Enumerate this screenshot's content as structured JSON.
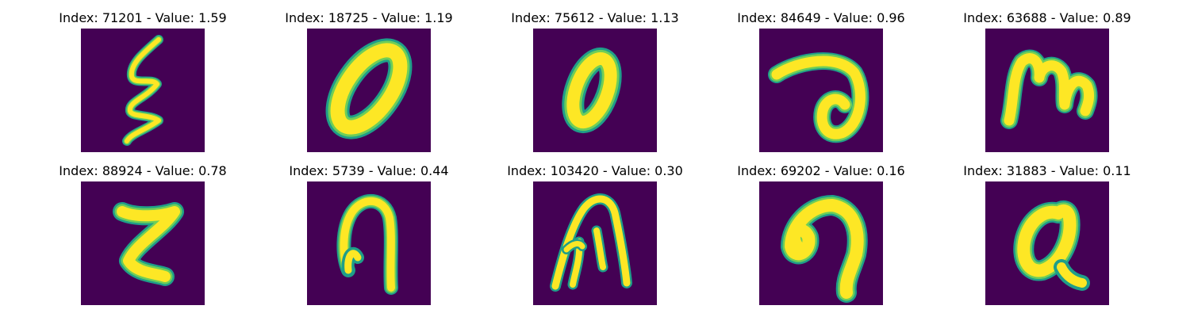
{
  "colors": {
    "background": "#440154",
    "glyph_core": "#fde725",
    "glyph_edge_mid": "#6ece58",
    "glyph_edge_outer": "#1f9e89"
  },
  "panels": [
    {
      "title": "Index: 71201 - Value: 1.59"
    },
    {
      "title": "Index: 18725 - Value: 1.19"
    },
    {
      "title": "Index: 75612 - Value: 1.13"
    },
    {
      "title": "Index: 84649 - Value: 0.96"
    },
    {
      "title": "Index: 63688 - Value: 0.89"
    },
    {
      "title": "Index: 88924 - Value: 0.78"
    },
    {
      "title": "Index: 5739 - Value: 0.44"
    },
    {
      "title": "Index: 103420 - Value: 0.30"
    },
    {
      "title": "Index: 69202 - Value: 0.16"
    },
    {
      "title": "Index: 31883 - Value: 0.11"
    }
  ]
}
